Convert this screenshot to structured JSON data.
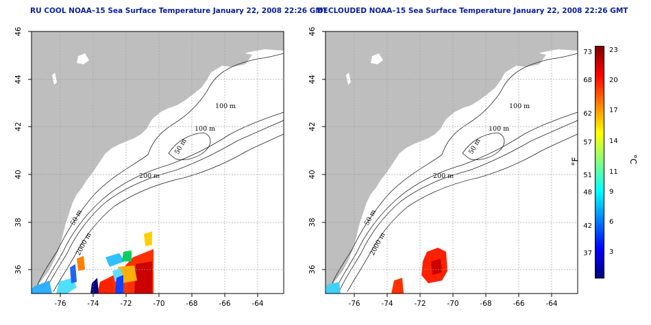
{
  "maps": {
    "left": {
      "title": "RU COOL NOAA–15 Sea Surface Temperature January 22, 2008 22:26 GMT"
    },
    "right": {
      "title": "DECLOUDED NOAA–15 Sea Surface Temperature January 22, 2008 22:26 GMT"
    }
  },
  "axes": {
    "lon_ticks": [
      "-76",
      "-74",
      "-72",
      "-70",
      "-68",
      "-66",
      "-64"
    ],
    "lat_ticks": [
      "36",
      "38",
      "40",
      "42",
      "44",
      "46"
    ],
    "lon_range": [
      -77.3,
      -63.1
    ],
    "lat_range": [
      35,
      46
    ]
  },
  "contours": {
    "labels": [
      "100 m",
      "100 m",
      "50 m",
      "200 m",
      "50 m",
      "2000 m"
    ]
  },
  "colorbar": {
    "fahrenheit_ticks": [
      "73",
      "68",
      "62",
      "57",
      "51",
      "48",
      "42",
      "37"
    ],
    "celsius_ticks": [
      "23",
      "20",
      "17",
      "14",
      "11",
      "9",
      "6",
      "3"
    ],
    "unit_f": "°F",
    "unit_c": "°C",
    "colors": [
      "#000080",
      "#0000ff",
      "#0080ff",
      "#00ffff",
      "#80ff80",
      "#ffff00",
      "#ff8000",
      "#ff0000",
      "#800000"
    ]
  }
}
